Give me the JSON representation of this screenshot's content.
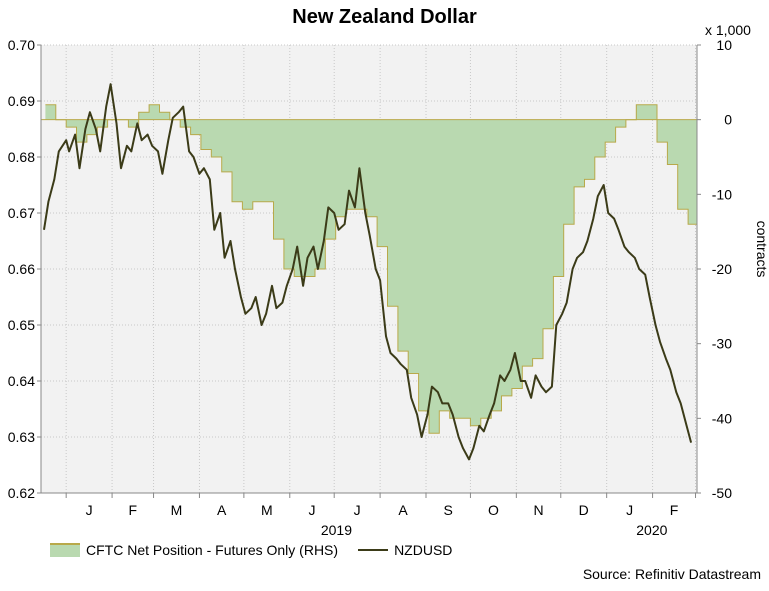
{
  "title": "New Zealand Dollar",
  "right_axis_unit": "x 1,000",
  "right_axis_label": "contracts",
  "source": "Source: Refinitiv Datastream",
  "colors": {
    "area_fill": "#b9d9b0",
    "area_stroke": "#b8a94a",
    "line": "#3b3b18",
    "grid": "#c8c8c8",
    "plot_bg": "#f2f2f2"
  },
  "legend": {
    "area_label": "CFTC Net Position - Futures Only (RHS)",
    "line_label": "NZDUSD"
  },
  "chart_data": {
    "type": "line",
    "title": "New Zealand Dollar",
    "x_months": [
      "J",
      "F",
      "M",
      "A",
      "M",
      "J",
      "J",
      "A",
      "S",
      "O",
      "N",
      "D",
      "J",
      "F"
    ],
    "x_years": [
      "2019",
      "2020"
    ],
    "y_left": {
      "range": [
        0.62,
        0.7
      ],
      "ticks": [
        "0.62",
        "0.63",
        "0.64",
        "0.65",
        "0.66",
        "0.67",
        "0.68",
        "0.69",
        "0.70"
      ]
    },
    "y_right": {
      "range": [
        -50,
        10
      ],
      "ticks": [
        "-50",
        "-40",
        "-30",
        "-20",
        "-10",
        "0",
        "10"
      ],
      "label": "contracts",
      "unit": "x 1,000"
    },
    "grid": true,
    "series": [
      {
        "name": "CFTC Net Position - Futures Only (RHS)",
        "axis": "right",
        "kind": "step-area",
        "x": [
          "2018-12-18",
          "2018-12-25",
          "2019-01-01",
          "2019-01-08",
          "2019-01-15",
          "2019-01-22",
          "2019-01-29",
          "2019-02-05",
          "2019-02-12",
          "2019-02-19",
          "2019-02-26",
          "2019-03-05",
          "2019-03-12",
          "2019-03-19",
          "2019-03-26",
          "2019-04-02",
          "2019-04-09",
          "2019-04-16",
          "2019-04-23",
          "2019-04-30",
          "2019-05-07",
          "2019-05-14",
          "2019-05-21",
          "2019-05-28",
          "2019-06-04",
          "2019-06-11",
          "2019-06-18",
          "2019-06-25",
          "2019-07-02",
          "2019-07-09",
          "2019-07-16",
          "2019-07-23",
          "2019-07-30",
          "2019-08-06",
          "2019-08-13",
          "2019-08-20",
          "2019-08-27",
          "2019-09-03",
          "2019-09-10",
          "2019-09-17",
          "2019-09-24",
          "2019-10-01",
          "2019-10-08",
          "2019-10-15",
          "2019-10-22",
          "2019-10-29",
          "2019-11-05",
          "2019-11-12",
          "2019-11-19",
          "2019-11-26",
          "2019-12-03",
          "2019-12-10",
          "2019-12-17",
          "2019-12-24",
          "2019-12-31",
          "2020-01-07",
          "2020-01-14",
          "2020-01-21",
          "2020-01-28",
          "2020-02-04",
          "2020-02-11",
          "2020-02-18",
          "2020-02-25"
        ],
        "values": [
          2,
          0,
          -1,
          -3,
          -2,
          -1,
          0,
          0,
          -1,
          1,
          2,
          1,
          0,
          -1,
          -2,
          -4,
          -5,
          -7,
          -11,
          -12,
          -11,
          -11,
          -16,
          -20,
          -21,
          -21,
          -20,
          -16,
          -13,
          -12,
          -12,
          -13,
          -17,
          -25,
          -31,
          -34,
          -39,
          -42,
          -39,
          -40,
          -40,
          -41,
          -40,
          -39,
          -37,
          -36,
          -33,
          -32,
          -28,
          -21,
          -14,
          -9,
          -8,
          -5,
          -3,
          -1,
          0,
          2,
          2,
          -3,
          -6,
          -12,
          -14
        ]
      },
      {
        "name": "NZDUSD",
        "axis": "left",
        "kind": "line",
        "x": [
          "2018-12-17",
          "2018-12-20",
          "2018-12-24",
          "2018-12-27",
          "2019-01-01",
          "2019-01-03",
          "2019-01-07",
          "2019-01-10",
          "2019-01-14",
          "2019-01-17",
          "2019-01-21",
          "2019-01-24",
          "2019-01-28",
          "2019-01-31",
          "2019-02-04",
          "2019-02-07",
          "2019-02-11",
          "2019-02-14",
          "2019-02-18",
          "2019-02-21",
          "2019-02-25",
          "2019-02-28",
          "2019-03-04",
          "2019-03-07",
          "2019-03-11",
          "2019-03-14",
          "2019-03-18",
          "2019-03-21",
          "2019-03-25",
          "2019-03-28",
          "2019-04-01",
          "2019-04-04",
          "2019-04-08",
          "2019-04-11",
          "2019-04-15",
          "2019-04-18",
          "2019-04-22",
          "2019-04-25",
          "2019-04-29",
          "2019-05-02",
          "2019-05-06",
          "2019-05-09",
          "2019-05-13",
          "2019-05-16",
          "2019-05-20",
          "2019-05-23",
          "2019-05-27",
          "2019-05-30",
          "2019-06-03",
          "2019-06-06",
          "2019-06-10",
          "2019-06-13",
          "2019-06-17",
          "2019-06-20",
          "2019-06-24",
          "2019-06-27",
          "2019-07-01",
          "2019-07-04",
          "2019-07-08",
          "2019-07-11",
          "2019-07-15",
          "2019-07-18",
          "2019-07-22",
          "2019-07-25",
          "2019-07-29",
          "2019-08-01",
          "2019-08-05",
          "2019-08-08",
          "2019-08-12",
          "2019-08-15",
          "2019-08-19",
          "2019-08-22",
          "2019-08-26",
          "2019-08-29",
          "2019-09-02",
          "2019-09-05",
          "2019-09-09",
          "2019-09-12",
          "2019-09-16",
          "2019-09-19",
          "2019-09-23",
          "2019-09-26",
          "2019-09-30",
          "2019-10-03",
          "2019-10-07",
          "2019-10-10",
          "2019-10-14",
          "2019-10-17",
          "2019-10-21",
          "2019-10-24",
          "2019-10-28",
          "2019-10-31",
          "2019-11-04",
          "2019-11-07",
          "2019-11-11",
          "2019-11-14",
          "2019-11-18",
          "2019-11-21",
          "2019-11-25",
          "2019-11-28",
          "2019-12-02",
          "2019-12-05",
          "2019-12-09",
          "2019-12-12",
          "2019-12-16",
          "2019-12-19",
          "2019-12-23",
          "2019-12-26",
          "2019-12-30",
          "2020-01-02",
          "2020-01-06",
          "2020-01-09",
          "2020-01-13",
          "2020-01-16",
          "2020-01-20",
          "2020-01-23",
          "2020-01-27",
          "2020-01-30",
          "2020-02-03",
          "2020-02-06",
          "2020-02-10",
          "2020-02-13",
          "2020-02-17",
          "2020-02-20",
          "2020-02-24",
          "2020-02-27"
        ],
        "values": [
          0.667,
          0.672,
          0.676,
          0.681,
          0.683,
          0.681,
          0.684,
          0.678,
          0.685,
          0.688,
          0.685,
          0.681,
          0.689,
          0.693,
          0.686,
          0.678,
          0.682,
          0.681,
          0.686,
          0.683,
          0.684,
          0.682,
          0.681,
          0.677,
          0.683,
          0.687,
          0.688,
          0.689,
          0.681,
          0.68,
          0.677,
          0.678,
          0.676,
          0.667,
          0.67,
          0.662,
          0.665,
          0.66,
          0.655,
          0.652,
          0.653,
          0.655,
          0.65,
          0.652,
          0.657,
          0.653,
          0.654,
          0.657,
          0.66,
          0.664,
          0.657,
          0.662,
          0.664,
          0.66,
          0.665,
          0.671,
          0.67,
          0.667,
          0.668,
          0.674,
          0.671,
          0.678,
          0.67,
          0.666,
          0.66,
          0.658,
          0.648,
          0.645,
          0.644,
          0.643,
          0.642,
          0.637,
          0.634,
          0.63,
          0.634,
          0.639,
          0.638,
          0.636,
          0.636,
          0.634,
          0.63,
          0.628,
          0.626,
          0.628,
          0.632,
          0.631,
          0.634,
          0.636,
          0.641,
          0.64,
          0.642,
          0.645,
          0.64,
          0.64,
          0.637,
          0.641,
          0.639,
          0.638,
          0.639,
          0.65,
          0.652,
          0.654,
          0.66,
          0.662,
          0.663,
          0.665,
          0.669,
          0.673,
          0.675,
          0.67,
          0.669,
          0.667,
          0.664,
          0.663,
          0.662,
          0.66,
          0.659,
          0.655,
          0.65,
          0.647,
          0.644,
          0.642,
          0.638,
          0.636,
          0.632,
          0.629
        ]
      }
    ]
  }
}
